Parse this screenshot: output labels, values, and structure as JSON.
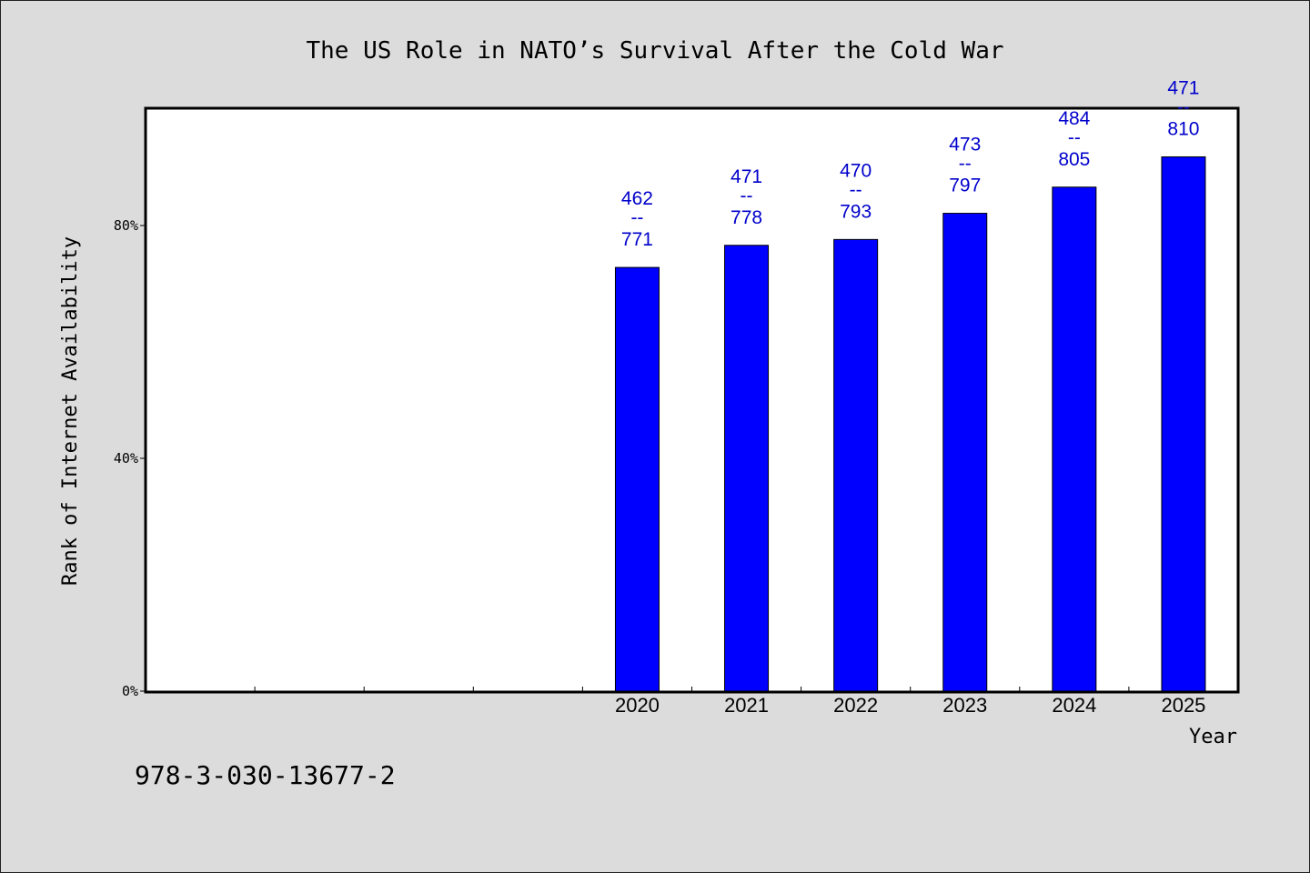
{
  "chart_data": {
    "type": "bar",
    "title": "The US Role in NATO’s Survival After the Cold War",
    "xlabel": "Year",
    "ylabel": "Rank of Internet Availability",
    "categories": [
      "",
      "",
      "",
      "",
      "2020",
      "2021",
      "2022",
      "2023",
      "2024",
      "2025"
    ],
    "values": [
      null,
      null,
      null,
      null,
      72.8,
      76.6,
      77.6,
      82.1,
      86.6,
      91.8
    ],
    "bar_labels": [
      null,
      null,
      null,
      null,
      {
        "top": "462",
        "sep": "--",
        "bottom": "771"
      },
      {
        "top": "471",
        "sep": "--",
        "bottom": "778"
      },
      {
        "top": "470",
        "sep": "--",
        "bottom": "793"
      },
      {
        "top": "473",
        "sep": "--",
        "bottom": "797"
      },
      {
        "top": "484",
        "sep": "--",
        "bottom": "805"
      },
      {
        "top": "471",
        "sep": "--",
        "bottom": "810"
      }
    ],
    "yticks": [
      0,
      40,
      80
    ],
    "ytick_labels": [
      "0%",
      "40%",
      "80%"
    ],
    "ylim": [
      0,
      100
    ],
    "grid": false,
    "bar_color": "#0000ff",
    "label_color": "#0000cc"
  },
  "footnote": "978-3-030-13677-2"
}
